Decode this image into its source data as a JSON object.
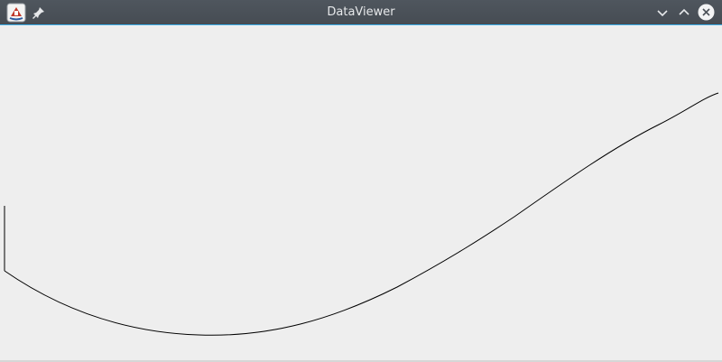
{
  "window": {
    "title": "DataViewer",
    "accent_color": "#3daee9",
    "titlebar_color": "#4b5158"
  },
  "titlebar": {
    "app_icon": "java-app-icon",
    "left_buttons": [
      {
        "name": "pin-icon"
      }
    ],
    "right_buttons": [
      {
        "name": "minimize-chevron-down-icon"
      },
      {
        "name": "maximize-chevron-up-icon"
      },
      {
        "name": "close-icon"
      }
    ]
  },
  "canvas": {
    "background": "#eeeeee",
    "stroke_color": "#000000"
  }
}
